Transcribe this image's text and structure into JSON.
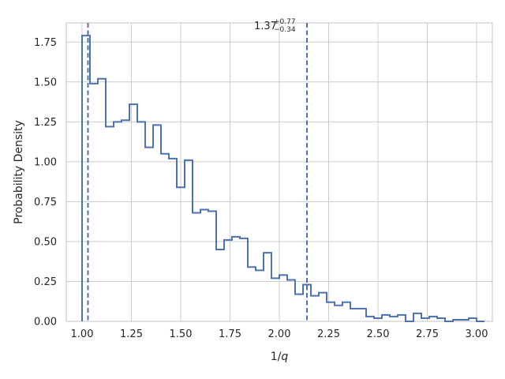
{
  "chart_data": {
    "type": "histogram",
    "title": {
      "value": "1.37",
      "upper": "+0.77",
      "lower": "−0.34"
    },
    "xlabel": "1/",
    "xlabel_italic": "q",
    "ylabel": "Probability Density",
    "xlim": [
      0.92,
      3.08
    ],
    "ylim": [
      0.0,
      1.87
    ],
    "x_ticks": [
      1.0,
      1.25,
      1.5,
      1.75,
      2.0,
      2.25,
      2.5,
      2.75,
      3.0
    ],
    "x_tick_labels": [
      "1.00",
      "1.25",
      "1.50",
      "1.75",
      "2.00",
      "2.25",
      "2.50",
      "2.75",
      "3.00"
    ],
    "y_ticks": [
      0.0,
      0.25,
      0.5,
      0.75,
      1.0,
      1.25,
      1.5,
      1.75
    ],
    "y_tick_labels": [
      "0.00",
      "0.25",
      "0.50",
      "0.75",
      "1.00",
      "1.25",
      "1.50",
      "1.75"
    ],
    "grid": true,
    "line_color": "#4c72b0",
    "grid_color": "#cccccc",
    "spine_color": "#cccccc",
    "bin_edges": [
      1.0,
      1.04,
      1.08,
      1.12,
      1.16,
      1.2,
      1.24,
      1.28,
      1.32,
      1.36,
      1.4,
      1.44,
      1.48,
      1.52,
      1.56,
      1.6,
      1.64,
      1.68,
      1.72,
      1.76,
      1.8,
      1.84,
      1.88,
      1.92,
      1.96,
      2.0,
      2.04,
      2.08,
      2.12,
      2.16,
      2.2,
      2.24,
      2.28,
      2.32,
      2.36,
      2.4,
      2.44,
      2.48,
      2.52,
      2.56,
      2.6,
      2.64,
      2.68,
      2.72,
      2.76,
      2.8,
      2.84,
      2.88,
      2.92,
      2.96,
      3.0,
      3.04
    ],
    "densities": [
      1.79,
      1.49,
      1.52,
      1.22,
      1.25,
      1.26,
      1.36,
      1.25,
      1.09,
      1.23,
      1.05,
      1.02,
      0.84,
      1.01,
      0.68,
      0.7,
      0.69,
      0.45,
      0.51,
      0.53,
      0.52,
      0.34,
      0.32,
      0.43,
      0.27,
      0.29,
      0.26,
      0.17,
      0.23,
      0.16,
      0.18,
      0.12,
      0.1,
      0.12,
      0.08,
      0.08,
      0.03,
      0.02,
      0.04,
      0.03,
      0.04,
      0.0,
      0.05,
      0.02,
      0.03,
      0.02,
      0.0,
      0.01,
      0.01,
      0.02,
      0.0
    ],
    "vlines": [
      1.03,
      2.14
    ]
  }
}
